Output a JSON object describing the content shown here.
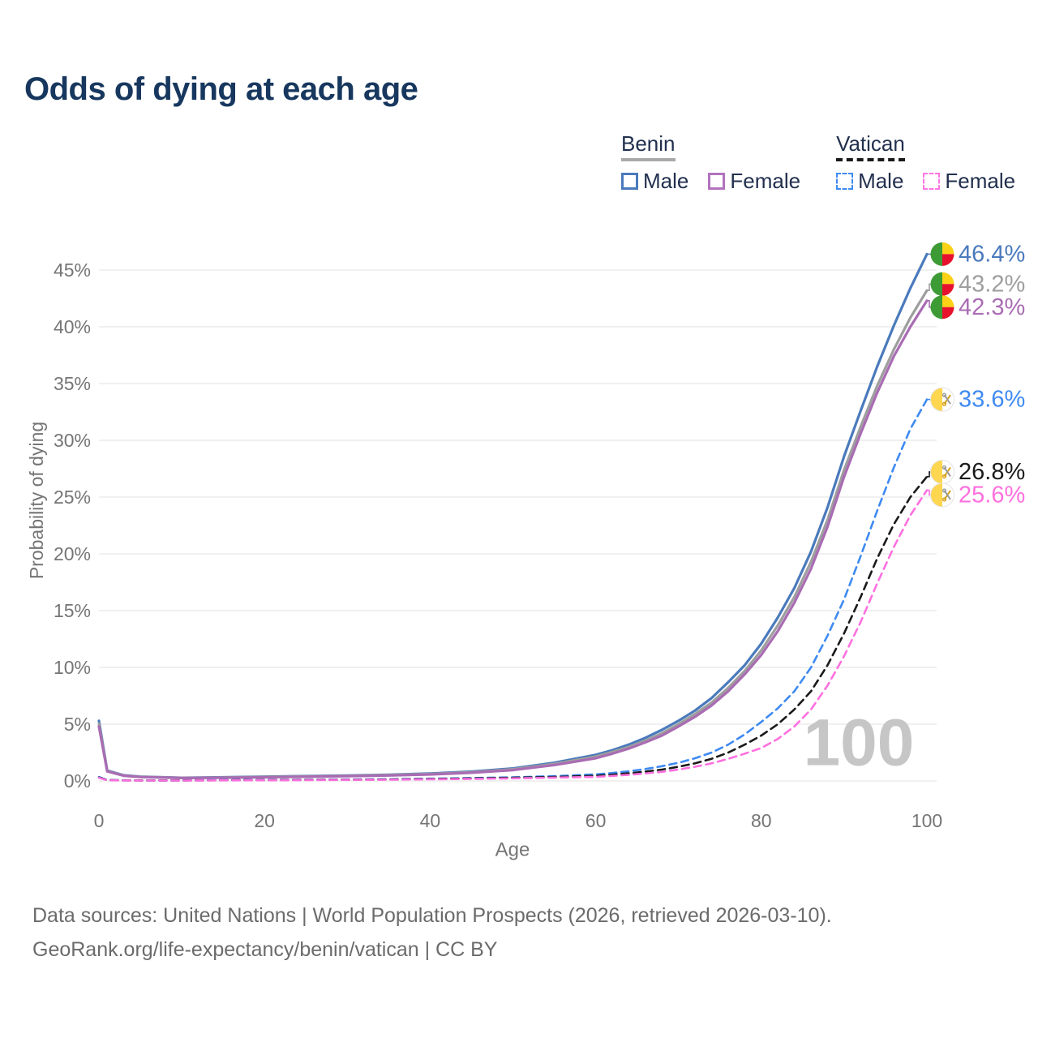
{
  "page": {
    "title": "Odds of dying at each age",
    "footer_line1": "Data sources: United Nations | World Population Prospects (2026, retrieved 2026-03-10).",
    "footer_line2": "GeoRank.org/life-expectancy/benin/vatican | CC BY"
  },
  "legend": {
    "groups": [
      {
        "name": "Benin",
        "line_style": "solid",
        "underline_color": "#a9a9a9",
        "items": [
          {
            "label": "Male",
            "color": "#4a7abc",
            "dashed": false
          },
          {
            "label": "Female",
            "color": "#b273bd",
            "dashed": false
          }
        ]
      },
      {
        "name": "Vatican",
        "line_style": "dashed",
        "underline_color": "#1a1a1a",
        "items": [
          {
            "label": "Male",
            "color": "#3f8af2",
            "dashed": true
          },
          {
            "label": "Female",
            "color": "#ff77e3",
            "dashed": true
          }
        ]
      }
    ]
  },
  "chart_data": {
    "type": "line",
    "title": "Odds of dying at each age",
    "xlabel": "Age",
    "ylabel": "Probability of dying",
    "xlim": [
      0,
      100
    ],
    "ylim": [
      0,
      47
    ],
    "xticks": [
      0,
      20,
      40,
      60,
      80,
      100
    ],
    "yticks": [
      0,
      5,
      10,
      15,
      20,
      25,
      30,
      35,
      40,
      45
    ],
    "ytick_suffix": "%",
    "grid": "horizontal",
    "legend_position": "top-right",
    "watermark": "100",
    "ages": [
      0,
      1,
      3,
      5,
      10,
      15,
      20,
      25,
      30,
      35,
      40,
      45,
      50,
      55,
      60,
      62,
      64,
      66,
      68,
      70,
      72,
      74,
      76,
      78,
      80,
      82,
      84,
      86,
      88,
      90,
      92,
      94,
      96,
      98,
      100
    ],
    "series": [
      {
        "name": "Benin Male",
        "slug": "benin-male",
        "color": "#4a7abc",
        "dashed": false,
        "flag": "benin",
        "end_value": 46.4,
        "end_label": "46.4%",
        "values": [
          5.3,
          0.92,
          0.5,
          0.38,
          0.28,
          0.32,
          0.38,
          0.43,
          0.48,
          0.55,
          0.65,
          0.82,
          1.1,
          1.6,
          2.3,
          2.7,
          3.2,
          3.8,
          4.5,
          5.3,
          6.2,
          7.3,
          8.7,
          10.2,
          12.1,
          14.4,
          17.0,
          20.2,
          24.1,
          28.6,
          32.6,
          36.5,
          40.1,
          43.4,
          46.4
        ]
      },
      {
        "name": "Benin",
        "slug": "benin-total",
        "color": "#9e9e9e",
        "dashed": false,
        "flag": "benin",
        "end_value": 43.2,
        "end_label": "43.2%",
        "values": [
          5.05,
          0.88,
          0.48,
          0.36,
          0.27,
          0.3,
          0.35,
          0.4,
          0.45,
          0.52,
          0.61,
          0.77,
          1.03,
          1.5,
          2.15,
          2.55,
          3.0,
          3.55,
          4.2,
          5.0,
          5.9,
          6.9,
          8.2,
          9.7,
          11.5,
          13.7,
          16.2,
          19.3,
          23.0,
          27.4,
          31.2,
          34.8,
          38.0,
          40.8,
          43.2
        ]
      },
      {
        "name": "Benin Female",
        "slug": "benin-female",
        "color": "#a96cb3",
        "dashed": false,
        "flag": "benin",
        "end_value": 42.3,
        "end_label": "42.3%",
        "values": [
          4.8,
          0.84,
          0.46,
          0.34,
          0.26,
          0.28,
          0.32,
          0.37,
          0.42,
          0.48,
          0.57,
          0.72,
          0.96,
          1.4,
          2.0,
          2.4,
          2.85,
          3.4,
          4.0,
          4.8,
          5.65,
          6.65,
          7.9,
          9.4,
          11.1,
          13.2,
          15.7,
          18.7,
          22.4,
          26.8,
          30.6,
          34.2,
          37.4,
          40.0,
          42.3
        ]
      },
      {
        "name": "Vatican Male",
        "slug": "vatican-male",
        "color": "#3f8af2",
        "dashed": true,
        "flag": "vatican",
        "end_value": 33.6,
        "end_label": "33.6%",
        "values": [
          0.35,
          0.08,
          0.06,
          0.05,
          0.05,
          0.07,
          0.09,
          0.11,
          0.13,
          0.16,
          0.2,
          0.26,
          0.32,
          0.42,
          0.58,
          0.7,
          0.85,
          1.05,
          1.3,
          1.6,
          2.0,
          2.5,
          3.2,
          4.1,
          5.2,
          6.4,
          7.9,
          10.0,
          12.8,
          16.0,
          19.8,
          23.8,
          27.6,
          31.0,
          33.6
        ]
      },
      {
        "name": "Vatican",
        "slug": "vatican-total",
        "color": "#1a1a1a",
        "dashed": true,
        "flag": "vatican",
        "end_value": 26.8,
        "end_label": "26.8%",
        "values": [
          0.3,
          0.07,
          0.05,
          0.04,
          0.04,
          0.06,
          0.08,
          0.09,
          0.11,
          0.13,
          0.17,
          0.22,
          0.28,
          0.35,
          0.45,
          0.55,
          0.67,
          0.82,
          1.0,
          1.25,
          1.55,
          1.95,
          2.5,
          3.2,
          4.0,
          5.0,
          6.3,
          7.9,
          10.2,
          13.0,
          16.2,
          19.6,
          22.6,
          25.0,
          26.8
        ]
      },
      {
        "name": "Vatican Female",
        "slug": "vatican-female",
        "color": "#ff70df",
        "dashed": true,
        "flag": "vatican",
        "end_value": 25.6,
        "end_label": "25.6%",
        "values": [
          0.28,
          0.06,
          0.04,
          0.035,
          0.035,
          0.05,
          0.06,
          0.07,
          0.09,
          0.11,
          0.14,
          0.18,
          0.23,
          0.29,
          0.36,
          0.44,
          0.54,
          0.66,
          0.8,
          1.0,
          1.25,
          1.55,
          1.95,
          2.4,
          2.9,
          3.7,
          4.8,
          6.3,
          8.4,
          11.0,
          14.0,
          17.4,
          20.6,
          23.4,
          25.6
        ]
      }
    ],
    "flag_colors": {
      "benin": {
        "green": "#3d9b35",
        "yellow": "#fcd116",
        "red": "#e8112d"
      },
      "vatican": {
        "yellow": "#ffd64f",
        "white": "#ffffff",
        "key_gold": "#d4a017",
        "key_silver": "#9a9a9a"
      }
    },
    "style": {
      "grid_color": "#ececec",
      "axis_text_color": "#757575",
      "watermark_color": "#c6c6c6",
      "title_color": "#17375e"
    }
  }
}
